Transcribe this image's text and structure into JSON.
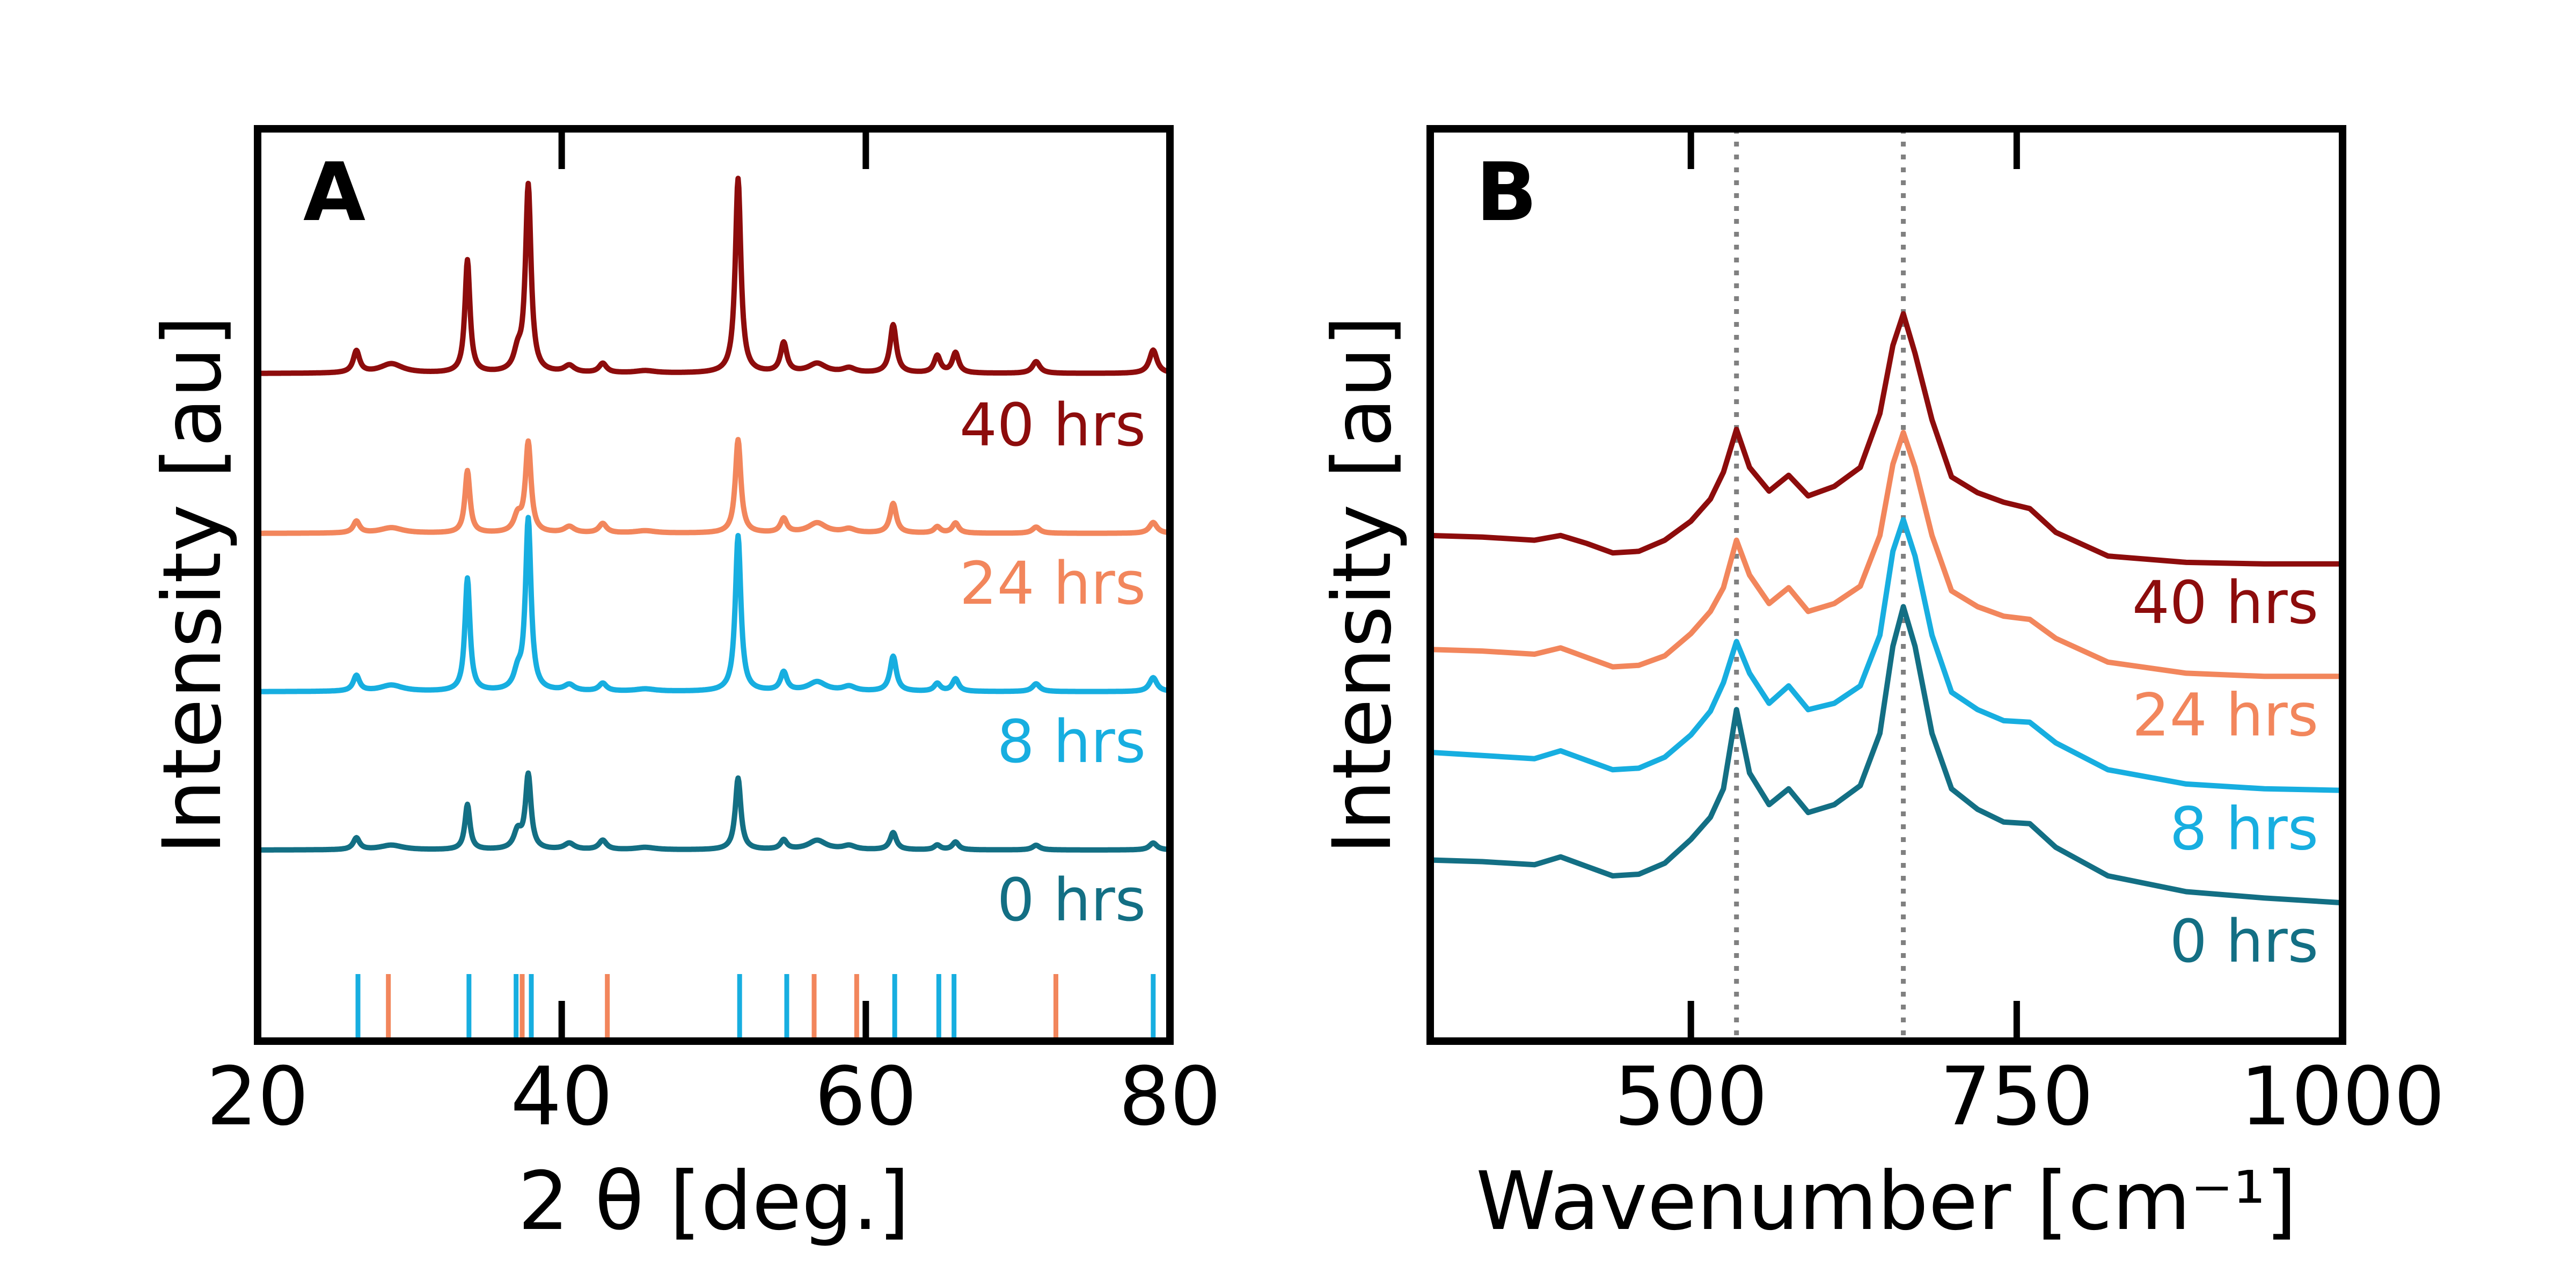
{
  "chart_data": [
    {
      "type": "line",
      "panel_label": "A",
      "xlabel": "2 θ [deg.]",
      "ylabel": "Intensity [au]",
      "xlim": [
        20,
        80
      ],
      "xticks": [
        "20",
        "40",
        "60",
        "80"
      ],
      "offset_spacing": 1.0,
      "peaks": [
        {
          "pos": 26.5,
          "w": 0.25,
          "h": [
            0.15,
            0.2,
            0.15,
            0.28
          ]
        },
        {
          "pos": 28.8,
          "w": 0.9,
          "h": [
            0.06,
            0.08,
            0.07,
            0.12
          ]
        },
        {
          "pos": 33.8,
          "w": 0.2,
          "h": [
            0.58,
            1.45,
            0.8,
            1.45
          ]
        },
        {
          "pos": 37.1,
          "w": 0.3,
          "h": [
            0.22,
            0.2,
            0.2,
            0.22
          ]
        },
        {
          "pos": 37.8,
          "w": 0.22,
          "h": [
            0.95,
            2.2,
            1.15,
            2.4
          ]
        },
        {
          "pos": 40.5,
          "w": 0.4,
          "h": [
            0.08,
            0.08,
            0.08,
            0.09
          ]
        },
        {
          "pos": 42.7,
          "w": 0.3,
          "h": [
            0.12,
            0.1,
            0.12,
            0.12
          ]
        },
        {
          "pos": 45.5,
          "w": 0.8,
          "h": [
            0.03,
            0.03,
            0.03,
            0.03
          ]
        },
        {
          "pos": 51.6,
          "w": 0.22,
          "h": [
            0.92,
            2.0,
            1.2,
            2.5
          ]
        },
        {
          "pos": 54.6,
          "w": 0.25,
          "h": [
            0.12,
            0.24,
            0.18,
            0.38
          ]
        },
        {
          "pos": 56.8,
          "w": 0.7,
          "h": [
            0.12,
            0.12,
            0.13,
            0.12
          ]
        },
        {
          "pos": 58.9,
          "w": 0.5,
          "h": [
            0.05,
            0.06,
            0.05,
            0.06
          ]
        },
        {
          "pos": 61.8,
          "w": 0.25,
          "h": [
            0.22,
            0.45,
            0.38,
            0.62
          ]
        },
        {
          "pos": 64.7,
          "w": 0.25,
          "h": [
            0.06,
            0.1,
            0.08,
            0.22
          ]
        },
        {
          "pos": 65.9,
          "w": 0.25,
          "h": [
            0.1,
            0.16,
            0.13,
            0.26
          ]
        },
        {
          "pos": 71.2,
          "w": 0.3,
          "h": [
            0.06,
            0.1,
            0.08,
            0.15
          ]
        },
        {
          "pos": 78.9,
          "w": 0.3,
          "h": [
            0.09,
            0.18,
            0.14,
            0.3
          ]
        }
      ],
      "series": [
        {
          "name": "0 hrs",
          "color": "#136f84",
          "baseline": 0.18
        },
        {
          "name": "8 hrs",
          "color": "#17aee0",
          "baseline": 0.18
        },
        {
          "name": "24 hrs",
          "color": "#f2865c",
          "baseline": 0.18
        },
        {
          "name": "40 hrs",
          "color": "#8d0c0c",
          "baseline": 0.2
        }
      ],
      "reference_ticks": [
        {
          "color": "#17aee0",
          "positions": [
            26.6,
            33.9,
            37.0,
            38.0,
            51.7,
            54.8,
            61.9,
            64.8,
            65.8,
            78.9
          ]
        },
        {
          "color": "#f2865c",
          "positions": [
            28.6,
            37.4,
            43.0,
            56.6,
            59.4,
            72.5
          ]
        }
      ]
    },
    {
      "type": "line",
      "panel_label": "B",
      "xlabel": "Wavenumber [cm⁻¹]",
      "ylabel": "Intensity [au]",
      "xlim": [
        300,
        1000
      ],
      "xticks": [
        "500",
        "750",
        "1000"
      ],
      "reference_lines": [
        535,
        663
      ],
      "series": [
        {
          "name": "0 hrs",
          "color": "#136f84",
          "x": [
            300,
            340,
            380,
            400,
            420,
            440,
            460,
            480,
            500,
            515,
            525,
            535,
            545,
            560,
            575,
            590,
            610,
            630,
            645,
            655,
            663,
            672,
            685,
            700,
            720,
            740,
            760,
            780,
            820,
            880,
            940,
            1000
          ],
          "y": [
            0.5,
            0.49,
            0.47,
            0.52,
            0.46,
            0.4,
            0.41,
            0.48,
            0.63,
            0.77,
            0.95,
            1.45,
            1.05,
            0.85,
            0.95,
            0.8,
            0.85,
            0.97,
            1.3,
            1.85,
            2.1,
            1.85,
            1.3,
            0.95,
            0.82,
            0.74,
            0.73,
            0.58,
            0.4,
            0.3,
            0.26,
            0.23
          ]
        },
        {
          "name": "8 hrs",
          "color": "#17aee0",
          "x": [
            300,
            340,
            380,
            400,
            420,
            440,
            460,
            480,
            500,
            515,
            525,
            535,
            545,
            560,
            575,
            590,
            610,
            630,
            645,
            655,
            663,
            672,
            685,
            700,
            720,
            740,
            760,
            780,
            820,
            880,
            940,
            1000
          ],
          "y": [
            1.18,
            1.16,
            1.14,
            1.19,
            1.13,
            1.07,
            1.08,
            1.15,
            1.29,
            1.44,
            1.62,
            1.88,
            1.68,
            1.49,
            1.6,
            1.45,
            1.49,
            1.6,
            1.92,
            2.45,
            2.65,
            2.42,
            1.92,
            1.56,
            1.45,
            1.38,
            1.37,
            1.24,
            1.07,
            0.98,
            0.95,
            0.94
          ]
        },
        {
          "name": "24 hrs",
          "color": "#f2865c",
          "x": [
            300,
            340,
            380,
            400,
            420,
            440,
            460,
            480,
            500,
            515,
            525,
            535,
            545,
            560,
            575,
            590,
            610,
            630,
            645,
            655,
            663,
            672,
            685,
            700,
            720,
            740,
            760,
            780,
            820,
            880,
            940,
            1000
          ],
          "y": [
            1.83,
            1.82,
            1.8,
            1.84,
            1.78,
            1.72,
            1.73,
            1.79,
            1.93,
            2.07,
            2.22,
            2.52,
            2.3,
            2.12,
            2.22,
            2.07,
            2.12,
            2.23,
            2.55,
            3.0,
            3.2,
            2.98,
            2.55,
            2.2,
            2.1,
            2.04,
            2.02,
            1.9,
            1.75,
            1.68,
            1.66,
            1.66
          ]
        },
        {
          "name": "40 hrs",
          "color": "#8d0c0c",
          "x": [
            300,
            340,
            380,
            400,
            420,
            440,
            460,
            480,
            500,
            515,
            525,
            535,
            545,
            560,
            575,
            590,
            610,
            630,
            645,
            655,
            663,
            672,
            685,
            700,
            720,
            740,
            760,
            780,
            820,
            880,
            940,
            1000
          ],
          "y": [
            2.55,
            2.54,
            2.52,
            2.55,
            2.5,
            2.44,
            2.45,
            2.52,
            2.64,
            2.78,
            2.95,
            3.22,
            2.98,
            2.83,
            2.93,
            2.8,
            2.86,
            2.98,
            3.32,
            3.75,
            3.95,
            3.7,
            3.28,
            2.92,
            2.82,
            2.76,
            2.72,
            2.57,
            2.42,
            2.38,
            2.37,
            2.37
          ]
        }
      ]
    }
  ]
}
